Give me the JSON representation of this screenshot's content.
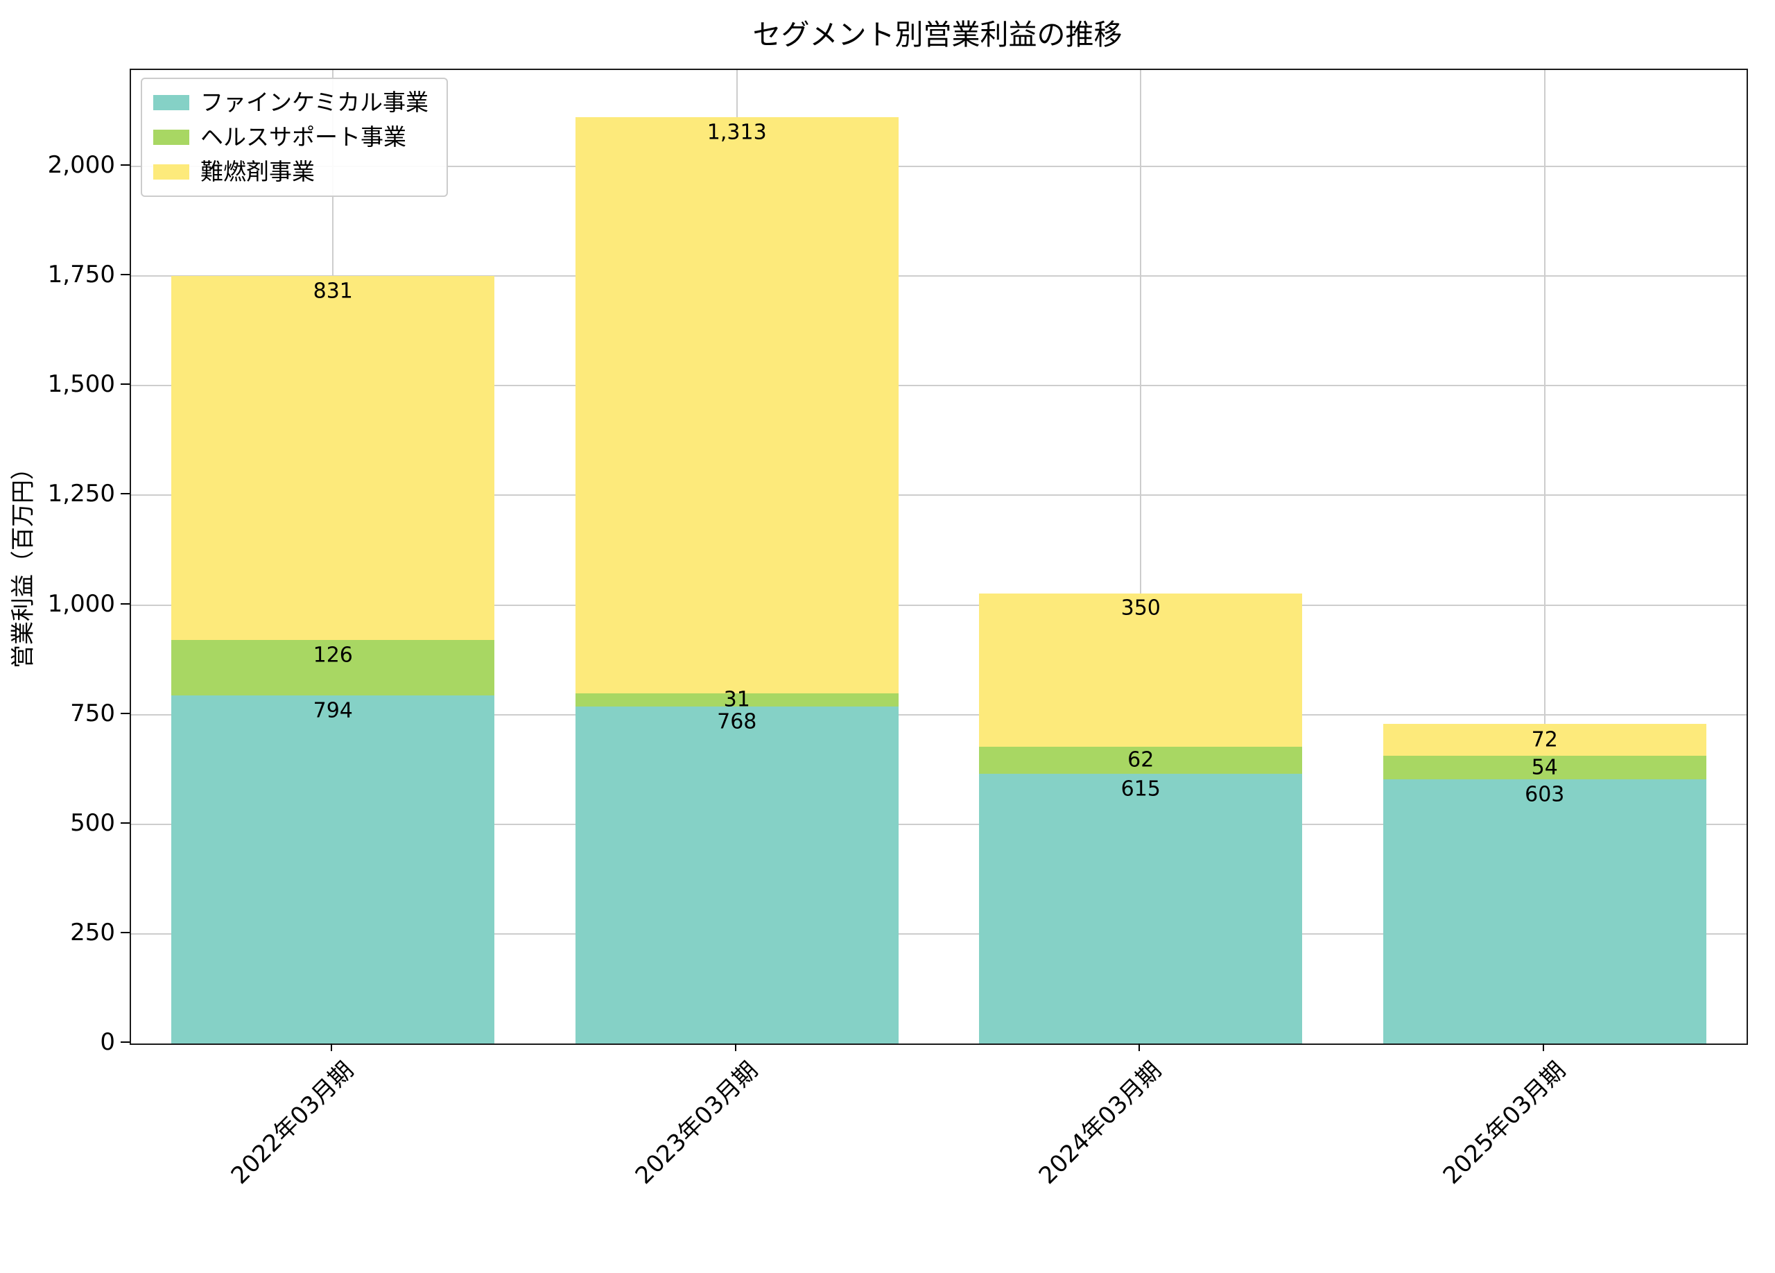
{
  "chart_data": {
    "type": "bar",
    "stacked": true,
    "title": "セグメント別営業利益の推移",
    "xlabel": "",
    "ylabel": "営業利益（百万円）",
    "categories": [
      "2022年03月期",
      "2023年03月期",
      "2024年03月期",
      "2025年03月期"
    ],
    "series": [
      {
        "name": "ファインケミカル事業",
        "color": "#85d1c6",
        "values": [
          794,
          768,
          615,
          603
        ]
      },
      {
        "name": "ヘルスサポート事業",
        "color": "#a8d763",
        "values": [
          126,
          31,
          62,
          54
        ]
      },
      {
        "name": "難燃剤事業",
        "color": "#fdea7b",
        "values": [
          831,
          1313,
          350,
          72
        ]
      }
    ],
    "yticks": [
      0,
      250,
      500,
      750,
      1000,
      1250,
      1500,
      1750,
      2000
    ],
    "ylim": [
      0,
      2220
    ],
    "grid": true,
    "legend_position": "upper left",
    "bar_label_format": "thousands-comma"
  }
}
